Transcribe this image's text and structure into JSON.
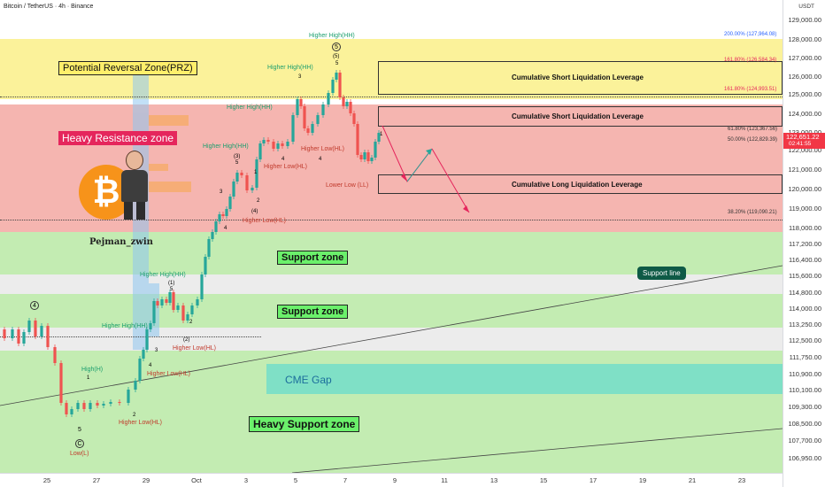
{
  "header": {
    "symbol_line": "Bitcoin / TetherUS · 4h · Binance"
  },
  "colors": {
    "bull": "#26a69a",
    "bear": "#ef5350",
    "resistance_fill": "#f5b5b0",
    "prz_fill": "#fbf29a",
    "support_fill": "#c3ecb2",
    "gray_fill": "#ececec",
    "cme_fill": "#7fe0c6",
    "accent_green": "#1a9e6d",
    "accent_red": "#e5265c"
  },
  "zones": {
    "prz_label": "Potential Reversal Zone(PRZ)",
    "heavy_resistance_label": "Heavy Resistance zone",
    "support_zone_1_label": "Support zone",
    "support_zone_2_label": "Support zone",
    "heavy_support_label": "Heavy Support zone",
    "cme_gap_label": "CME Gap",
    "support_line_label": "Support line"
  },
  "boxes": {
    "short_liq_1": "Cumulative Short Liquidation Leverage",
    "short_liq_2": "Cumulative Short Liquidation Leverage",
    "long_liq": "Cumulative Long Liquidation Leverage"
  },
  "fib_levels": {
    "f200": "200.00% (127,964.08)",
    "f1618a": "161.80% (126,584.34)",
    "f1618b": "161.80% (124,993.51)",
    "f618": "61.80% (123,367.56)",
    "f50": "50.00% (122,829.39)",
    "f382": "38.20% (119,090.21)"
  },
  "wave_labels": {
    "hh_top": "Higher High(HH)",
    "hh_top_circle": "5",
    "hh_top_paren": "(5)",
    "hh_top_5": "5",
    "hh_3": "Higher High(HH)",
    "hh_3_num": "3",
    "hh_2": "Higher High(HH)",
    "hh_2_num": "(3)",
    "hh_2_sub": "5",
    "hh_1": "Higher High(HH)",
    "hl_1": "Higher Low(HL)",
    "hl_1_num": "4",
    "hl_recent": "Higher Low(HL)",
    "hl_recent_num": "4",
    "ll": "Lower Low (LL)",
    "hl_4": "Higher Low(HL)",
    "hl_4_num": "(4)",
    "hh_mid": "Higher High(HH)",
    "hh_mid_num": "(1)",
    "hh_mid_5": "5",
    "hh_left": "Higher High(HH)",
    "hl_mid": "Higher Low(HL)",
    "hl_mid_num": "(2)",
    "hl_low": "Higher Low(HL)",
    "hl_low_num": "4",
    "high_h": "High(H)",
    "high_h_num": "1",
    "hl_bottom": "Higher Low(HL)",
    "hl_bottom_num": "2",
    "low_l": "Low(L)",
    "low_circle": "C",
    "low_5": "5",
    "left_circle": "4",
    "n3": "3",
    "n2": "2",
    "n1": "1",
    "n4": "4",
    "n2b": "2",
    "n3b": "3",
    "n1b": "1",
    "n3c": "3"
  },
  "author": {
    "name": "Pejman_zwin",
    "logo_letter": "₿"
  },
  "price_axis": {
    "currency": "USDT",
    "ticks": [
      "129,000.00",
      "128,000.00",
      "127,000.00",
      "126,000.00",
      "125,000.00",
      "124,000.00",
      "123,000.00",
      "122,000.00",
      "121,000.00",
      "120,000.00",
      "119,000.00",
      "118,000.00",
      "117,200.00",
      "116,400.00",
      "115,600.00",
      "114,800.00",
      "114,000.00",
      "113,250.00",
      "112,500.00",
      "111,750.00",
      "110,900.00",
      "110,100.00",
      "109,300.00",
      "108,500.00",
      "107,700.00",
      "106,950.00"
    ],
    "current_price": "122,651.22",
    "countdown": "02:41:55"
  },
  "time_axis": {
    "ticks": [
      "25",
      "27",
      "29",
      "Oct",
      "3",
      "5",
      "7",
      "9",
      "11",
      "13",
      "15",
      "17",
      "19",
      "21",
      "23"
    ]
  }
}
